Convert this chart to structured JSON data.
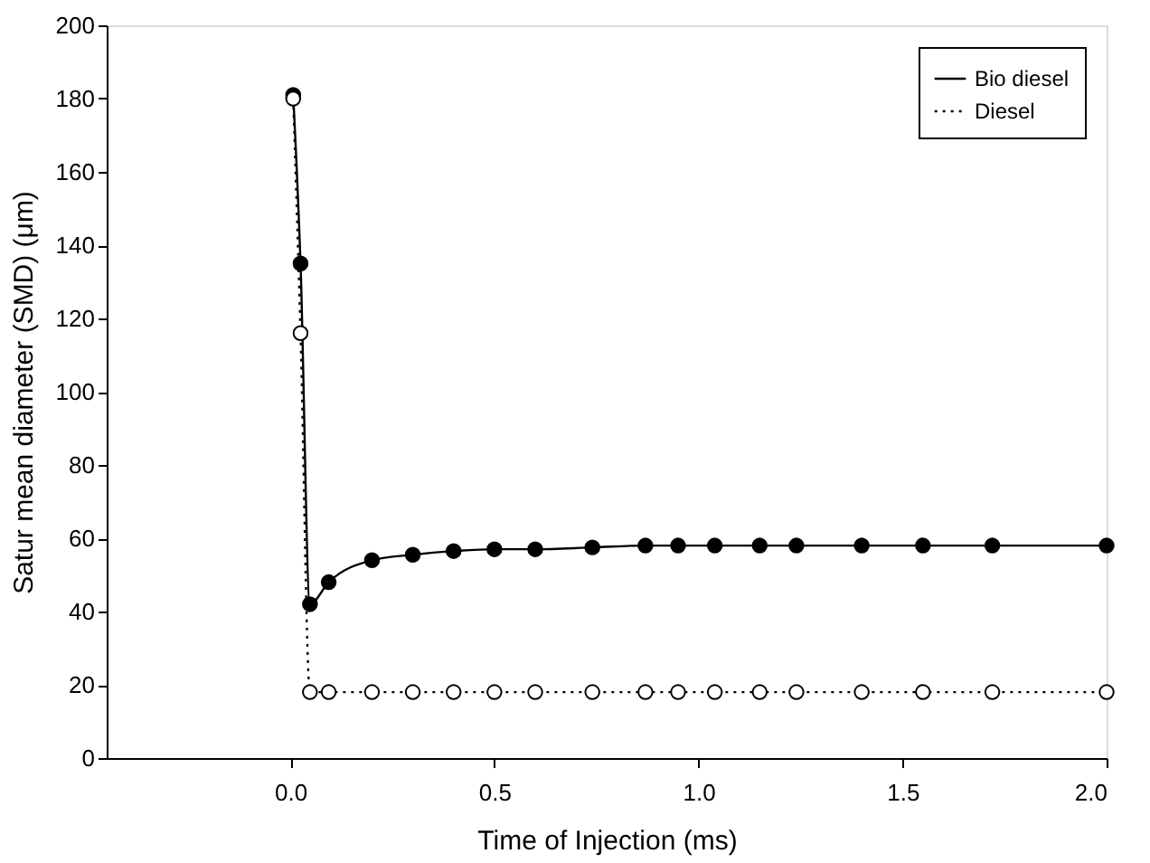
{
  "chart_data": {
    "type": "line",
    "xlabel": "Time of Injection (ms)",
    "ylabel": "Satur mean diameter (SMD) (μm)",
    "xlim": [
      -0.45,
      2.0
    ],
    "xticks": [
      {
        "value": 0,
        "label": "0.0"
      },
      0.5,
      {
        "value": 1,
        "label": "1.0"
      },
      1.5,
      {
        "value": 2,
        "label": "2.0"
      }
    ],
    "ylim": [
      0,
      200
    ],
    "yticks": [
      0,
      20,
      40,
      60,
      80,
      100,
      120,
      140,
      160,
      180,
      200
    ],
    "grid": false,
    "legend": "top right",
    "marker": "circle",
    "series": [
      {
        "name": "Bio diesel",
        "color": "#000000",
        "line_style": "solid",
        "x": [
          0.007,
          0.025,
          0.048,
          0.094,
          0.2,
          0.3,
          0.4,
          0.5,
          0.6,
          0.74,
          0.87,
          0.95,
          1.04,
          1.15,
          1.24,
          1.4,
          1.55,
          1.72,
          2.0
        ],
        "values": [
          181,
          135,
          42,
          48,
          54,
          55.5,
          56.5,
          57,
          57,
          57.5,
          58,
          58,
          58,
          58,
          58,
          58,
          58,
          58,
          58
        ]
      },
      {
        "name": "Diesel",
        "color": "#000000",
        "line_style": "dotted",
        "x": [
          0.007,
          0.025,
          0.048,
          0.094,
          0.2,
          0.3,
          0.4,
          0.5,
          0.6,
          0.74,
          0.87,
          0.95,
          1.04,
          1.15,
          1.24,
          1.4,
          1.55,
          1.72,
          2.0
        ],
        "values": [
          180,
          116,
          18,
          18,
          18,
          18,
          18,
          18,
          18,
          18,
          18,
          18,
          18,
          18,
          18,
          18,
          18,
          18,
          18
        ]
      }
    ]
  }
}
